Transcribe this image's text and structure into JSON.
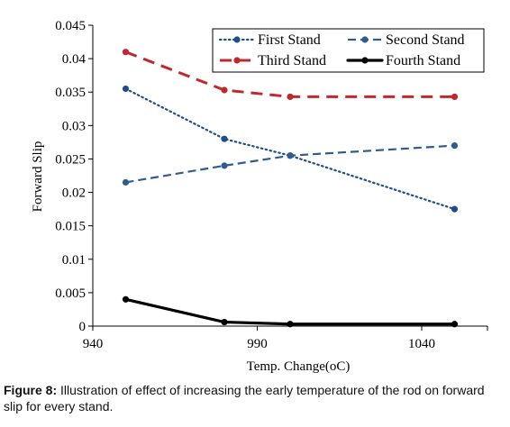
{
  "chart_data": {
    "type": "line",
    "xlabel": "Temp. Change(oC)",
    "ylabel": "Forward Slip",
    "xlim": [
      940,
      1060
    ],
    "ylim": [
      0,
      0.045
    ],
    "x_ticks": [
      "940",
      "990",
      "1040"
    ],
    "y_ticks": [
      "0",
      "0.005",
      "0.01",
      "0.015",
      "0.02",
      "0.025",
      "0.03",
      "0.035",
      "0.04",
      "0.045"
    ],
    "x": [
      950,
      980,
      1000,
      1050
    ],
    "series": [
      {
        "name": "First Stand",
        "values": [
          0.0355,
          0.028,
          0.0255,
          0.0175
        ],
        "color": "#1f4e8c",
        "dash": "dotted"
      },
      {
        "name": "Second Stand",
        "values": [
          0.0215,
          0.024,
          0.0255,
          0.027
        ],
        "color": "#2f5d8c",
        "dash": "dashed"
      },
      {
        "name": "Third Stand",
        "values": [
          0.041,
          0.0353,
          0.0343,
          0.0343
        ],
        "color": "#c0282d",
        "dash": "longdash"
      },
      {
        "name": "Fourth Stand",
        "values": [
          0.004,
          0.0006,
          0.0003,
          0.0003
        ],
        "color": "#000000",
        "dash": "solid"
      }
    ],
    "grid": false,
    "legend_position": "top-right"
  },
  "caption": {
    "label": "Figure 8:",
    "text": " Illustration of effect of increasing the early temperature of the rod on forward slip for every stand."
  }
}
